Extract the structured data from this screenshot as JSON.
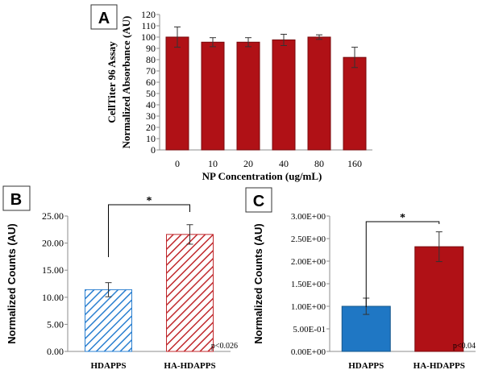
{
  "colors": {
    "bar_red": "#b01116",
    "bar_blue": "#1f77c4",
    "hatch_blue": "#2a7fd0",
    "hatch_red": "#c0282c"
  },
  "chart_data": [
    {
      "panel": "A",
      "type": "bar",
      "ylabel": "CellTiter 96 Assay Normalized Absorbance (AU)",
      "xlabel": "NP Concentration (ug/mL)",
      "categories": [
        "0",
        "10",
        "20",
        "40",
        "80",
        "160"
      ],
      "values": [
        100,
        95.5,
        95.5,
        97.5,
        100,
        82
      ],
      "errors": [
        9,
        4,
        4,
        5,
        2,
        9
      ],
      "ylim": [
        0,
        120
      ],
      "yticks": [
        "0",
        "10",
        "20",
        "30",
        "40",
        "50",
        "60",
        "70",
        "80",
        "90",
        "100",
        "110",
        "120"
      ],
      "grid": false
    },
    {
      "panel": "B",
      "type": "bar",
      "ylabel": "Normalized Counts (AU)",
      "categories": [
        "HDAPPS",
        "HA-HDAPPS"
      ],
      "values": [
        11.4,
        21.6
      ],
      "errors": [
        1.3,
        1.8
      ],
      "ylim": [
        0,
        25
      ],
      "yticks": [
        "0.00",
        "5.00",
        "10.00",
        "15.00",
        "20.00",
        "25.00"
      ],
      "significance": "*",
      "pvalue": "p<0.026",
      "grid": false
    },
    {
      "panel": "C",
      "type": "bar",
      "ylabel": "Normalized Counts (AU)",
      "categories": [
        "HDAPPS",
        "HA-HDAPPS"
      ],
      "values": [
        1.0,
        2.32
      ],
      "errors": [
        0.18,
        0.33
      ],
      "ylim": [
        0,
        3
      ],
      "yticks": [
        "0.00E+00",
        "5.00E-01",
        "1.00E+00",
        "1.50E+00",
        "2.00E+00",
        "2.50E+00",
        "3.00E+00"
      ],
      "significance": "*",
      "pvalue": "p<0.04",
      "grid": false
    }
  ]
}
